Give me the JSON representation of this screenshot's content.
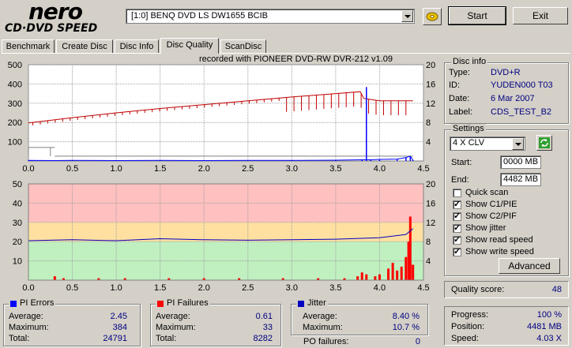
{
  "brand": {
    "line1": "nero",
    "line2": "CD·DVD SPEED"
  },
  "drive": {
    "value": "[1:0]  BENQ DVD LS DW1655 BCIB"
  },
  "buttons": {
    "start": "Start",
    "exit": "Exit",
    "advanced": "Advanced"
  },
  "tabs": [
    "Benchmark",
    "Create Disc",
    "Disc Info",
    "Disc Quality",
    "ScanDisc"
  ],
  "active_tab": "Disc Quality",
  "recorded_with": "recorded with PIONEER DVD-RW  DVR-212  v1.09",
  "disc_info": {
    "title": "Disc info",
    "type_label": "Type:",
    "type": "DVD+R",
    "id_label": "ID:",
    "id": "YUDEN000 T03",
    "date_label": "Date:",
    "date": "6 Mar 2007",
    "label_label": "Label:",
    "label": "CDS_TEST_B2"
  },
  "settings": {
    "title": "Settings",
    "speed": "4 X CLV",
    "start_label": "Start:",
    "start": "0000 MB",
    "end_label": "End:",
    "end": "4482 MB",
    "options": [
      {
        "label": "Quick scan",
        "checked": false
      },
      {
        "label": "Show C1/PIE",
        "checked": true
      },
      {
        "label": "Show C2/PIF",
        "checked": true
      },
      {
        "label": "Show jitter",
        "checked": true
      },
      {
        "label": "Show read speed",
        "checked": true
      },
      {
        "label": "Show write speed",
        "checked": true
      }
    ]
  },
  "quality": {
    "label": "Quality score:",
    "value": "48"
  },
  "progress": {
    "progress_label": "Progress:",
    "progress": "100 %",
    "position_label": "Position:",
    "position": "4481 MB",
    "speed_label": "Speed:",
    "speed": "4.03 X"
  },
  "pi_errors": {
    "title": "PI Errors",
    "avg_label": "Average:",
    "avg": "2.45",
    "max_label": "Maximum:",
    "max": "384",
    "total_label": "Total:",
    "total": "24791"
  },
  "pi_failures": {
    "title": "PI Failures",
    "avg_label": "Average:",
    "avg": "0.61",
    "max_label": "Maximum:",
    "max": "33",
    "total_label": "Total:",
    "total": "8282"
  },
  "jitter": {
    "title": "Jitter",
    "avg_label": "Average:",
    "avg": "8.40 %",
    "max_label": "Maximum:",
    "max": "10.7 %",
    "po_label": "PO failures:",
    "po": "0"
  },
  "colors": {
    "pie": "#0000ff",
    "pif": "#ff0000",
    "speed": "#c00000",
    "jitter": "#0000c0",
    "band_red": "#ffc0c0",
    "band_yellow": "#ffe0a0",
    "band_green": "#c0f0c0"
  },
  "chart_data": [
    {
      "type": "line",
      "name": "pie-chart",
      "x_ticks": [
        "0.0",
        "0.5",
        "1.0",
        "1.5",
        "2.0",
        "2.5",
        "3.0",
        "3.5",
        "4.0",
        "4.5"
      ],
      "y_left_ticks": [
        "500",
        "400",
        "300",
        "200",
        "100"
      ],
      "y_right_ticks": [
        "20",
        "16",
        "12",
        "8",
        "4"
      ],
      "xlim": [
        0,
        4.5
      ],
      "ylim_left": [
        0,
        500
      ],
      "ylim_right": [
        0,
        20
      ],
      "series": [
        {
          "kind": "pie",
          "values": [
            [
              0,
              3
            ],
            [
              0.3,
              2
            ],
            [
              0.5,
              3
            ],
            [
              1.0,
              2
            ],
            [
              1.5,
              3
            ],
            [
              2.0,
              2
            ],
            [
              2.5,
              3
            ],
            [
              3.0,
              3
            ],
            [
              3.5,
              4
            ],
            [
              3.8,
              6
            ],
            [
              3.85,
              384
            ],
            [
              3.9,
              6
            ],
            [
              4.0,
              8
            ],
            [
              4.2,
              10
            ],
            [
              4.3,
              18
            ],
            [
              4.35,
              25
            ],
            [
              4.38,
              5
            ]
          ]
        },
        {
          "kind": "speed",
          "values": [
            [
              0,
              7.9
            ],
            [
              0.5,
              9.0
            ],
            [
              1.0,
              10.0
            ],
            [
              1.5,
              10.9
            ],
            [
              2.0,
              11.7
            ],
            [
              2.5,
              12.5
            ],
            [
              3.0,
              13.3
            ],
            [
              3.5,
              14.0
            ],
            [
              3.78,
              14.4
            ],
            [
              3.82,
              13.0
            ],
            [
              4.0,
              12.5
            ],
            [
              4.38,
              12.5
            ]
          ]
        }
      ]
    },
    {
      "type": "bar",
      "name": "pif-chart",
      "x_ticks": [
        "0.0",
        "0.5",
        "1.0",
        "1.5",
        "2.0",
        "2.5",
        "3.0",
        "3.5",
        "4.0",
        "4.5"
      ],
      "y_left_ticks": [
        "50",
        "40",
        "30",
        "20",
        "10"
      ],
      "y_right_ticks": [
        "20",
        "16",
        "12",
        "8",
        "4"
      ],
      "xlim": [
        0,
        4.5
      ],
      "ylim_left": [
        0,
        50
      ],
      "ylim_right": [
        0,
        20
      ],
      "series": [
        {
          "kind": "pif",
          "values": [
            [
              0.3,
              2
            ],
            [
              0.4,
              1
            ],
            [
              0.8,
              1
            ],
            [
              1.1,
              1
            ],
            [
              1.6,
              1
            ],
            [
              2.0,
              1
            ],
            [
              2.4,
              1
            ],
            [
              2.9,
              1
            ],
            [
              3.3,
              1
            ],
            [
              3.6,
              1
            ],
            [
              3.75,
              2
            ],
            [
              3.8,
              4
            ],
            [
              3.85,
              3
            ],
            [
              3.95,
              2
            ],
            [
              4.0,
              3
            ],
            [
              4.1,
              6
            ],
            [
              4.15,
              9
            ],
            [
              4.2,
              5
            ],
            [
              4.25,
              7
            ],
            [
              4.3,
              12
            ],
            [
              4.33,
              20
            ],
            [
              4.35,
              33
            ],
            [
              4.38,
              8
            ]
          ]
        },
        {
          "kind": "jitter",
          "values": [
            [
              0,
              8.2
            ],
            [
              0.5,
              8.4
            ],
            [
              1.0,
              8.2
            ],
            [
              1.5,
              8.6
            ],
            [
              2.0,
              8.4
            ],
            [
              2.5,
              8.3
            ],
            [
              3.0,
              8.4
            ],
            [
              3.5,
              8.5
            ],
            [
              4.0,
              8.8
            ],
            [
              4.3,
              9.5
            ],
            [
              4.38,
              10.7
            ]
          ]
        }
      ]
    }
  ]
}
